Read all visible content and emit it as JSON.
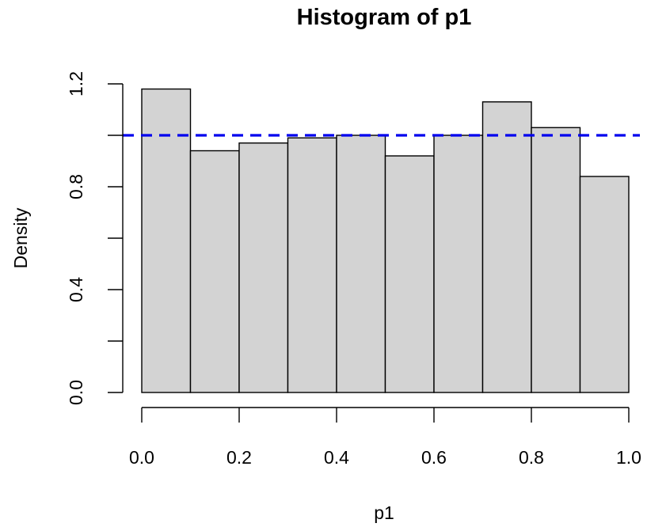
{
  "chart_data": {
    "type": "bar",
    "title": "Histogram of p1",
    "xlabel": "p1",
    "ylabel": "Density",
    "bins": [
      {
        "x0": 0.0,
        "x1": 0.1,
        "value": 1.18
      },
      {
        "x0": 0.1,
        "x1": 0.2,
        "value": 0.94
      },
      {
        "x0": 0.2,
        "x1": 0.3,
        "value": 0.97
      },
      {
        "x0": 0.3,
        "x1": 0.4,
        "value": 0.99
      },
      {
        "x0": 0.4,
        "x1": 0.5,
        "value": 1.0
      },
      {
        "x0": 0.5,
        "x1": 0.6,
        "value": 0.92
      },
      {
        "x0": 0.6,
        "x1": 0.7,
        "value": 1.0
      },
      {
        "x0": 0.7,
        "x1": 0.8,
        "value": 1.13
      },
      {
        "x0": 0.8,
        "x1": 0.9,
        "value": 1.03
      },
      {
        "x0": 0.9,
        "x1": 1.0,
        "value": 0.84
      }
    ],
    "xlim": [
      0,
      1
    ],
    "ylim": [
      0,
      1.2
    ],
    "x_ticks": [
      0.0,
      0.2,
      0.4,
      0.6,
      0.8,
      1.0
    ],
    "x_tick_labels": [
      "0.0",
      "0.2",
      "0.4",
      "0.6",
      "0.8",
      "1.0"
    ],
    "y_ticks": [
      0.0,
      0.2,
      0.4,
      0.6,
      0.8,
      1.0,
      1.2
    ],
    "y_tick_labels": [
      "0.0",
      "",
      "0.4",
      "",
      "0.8",
      "",
      "1.2"
    ],
    "reference_line": {
      "y": 1.0,
      "style": "dashed",
      "color": "#0000ee"
    },
    "bar_fill": "#d3d3d3",
    "bar_stroke": "#000000",
    "grid": false,
    "legend": "none"
  }
}
